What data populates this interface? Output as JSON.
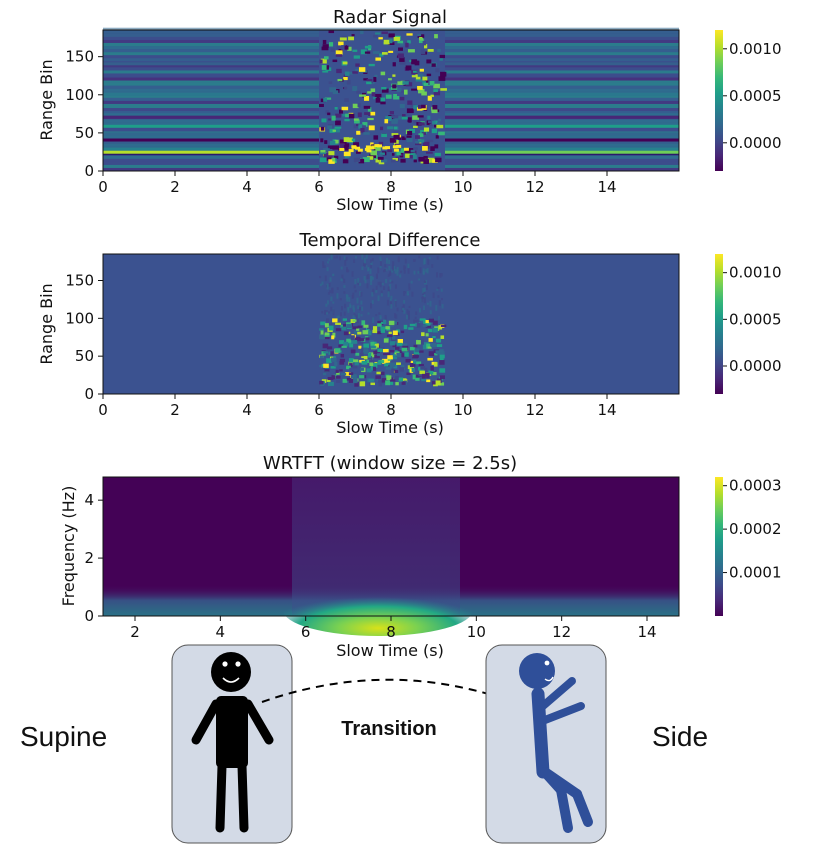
{
  "colors": {
    "viridis": [
      "#440154",
      "#482777",
      "#3e4989",
      "#31688e",
      "#26828e",
      "#1f9e89",
      "#35b779",
      "#6ece58",
      "#b5de2b",
      "#fde725"
    ],
    "figure_fill": "#2f4f99",
    "panel_bg": "#d3dae6"
  },
  "chart_data": [
    {
      "type": "heatmap",
      "title": "Radar Signal",
      "xlabel": "Slow Time (s)",
      "ylabel": "Range Bin",
      "xlim": [
        0,
        16
      ],
      "ylim": [
        0,
        185
      ],
      "xticks": [
        "0",
        "2",
        "4",
        "6",
        "8",
        "10",
        "12",
        "14"
      ],
      "yticks": [
        "0",
        "50",
        "100",
        "150"
      ],
      "colorbar": {
        "range": [
          -0.0003,
          0.0012
        ],
        "ticks": [
          "0.0000",
          "0.0005",
          "0.0010"
        ],
        "tick_values": [
          0,
          0.0005,
          0.001
        ]
      },
      "description_of_values": {
        "static_bands_range_bins": [
          22,
          28,
          40,
          48,
          58,
          70,
          80,
          100,
          120,
          140
        ],
        "strong_band_range_bin": 24,
        "motion_interval_s": [
          6.0,
          9.5
        ],
        "motion_range_bins": [
          15,
          185
        ]
      }
    },
    {
      "type": "heatmap",
      "title": "Temporal Difference",
      "xlabel": "Slow Time (s)",
      "ylabel": "Range Bin",
      "xlim": [
        0,
        16
      ],
      "ylim": [
        0,
        185
      ],
      "xticks": [
        "0",
        "2",
        "4",
        "6",
        "8",
        "10",
        "12",
        "14"
      ],
      "yticks": [
        "0",
        "50",
        "100",
        "150"
      ],
      "colorbar": {
        "range": [
          -0.0003,
          0.0012
        ],
        "ticks": [
          "0.0000",
          "0.0005",
          "0.0010"
        ],
        "tick_values": [
          0,
          0.0005,
          0.001
        ]
      },
      "description_of_values": {
        "motion_interval_s": [
          6.0,
          9.5
        ],
        "active_range_bins": [
          15,
          100
        ]
      }
    },
    {
      "type": "heatmap",
      "title": "WRTFT (window size = 2.5s)",
      "xlabel": "Slow Time (s)",
      "ylabel": "Frequency (Hz)",
      "xlim": [
        1.25,
        14.75
      ],
      "ylim": [
        0,
        4.8
      ],
      "xticks": [
        "2",
        "4",
        "6",
        "8",
        "10",
        "12",
        "14"
      ],
      "yticks": [
        "0",
        "2",
        "4"
      ],
      "colorbar": {
        "range": [
          0,
          0.00032
        ],
        "ticks": [
          "0.0001",
          "0.0002",
          "0.0003"
        ],
        "tick_values": [
          0.0001,
          0.0002,
          0.0003
        ]
      },
      "description_of_values": {
        "peak_time_s": 7.75,
        "peak_frequency_hz": 0.25,
        "energy_interval_s": [
          5.9,
          9.6
        ]
      }
    }
  ],
  "illustration": {
    "left_label": "Supine",
    "center_label": "Transition",
    "right_label": "Side"
  }
}
